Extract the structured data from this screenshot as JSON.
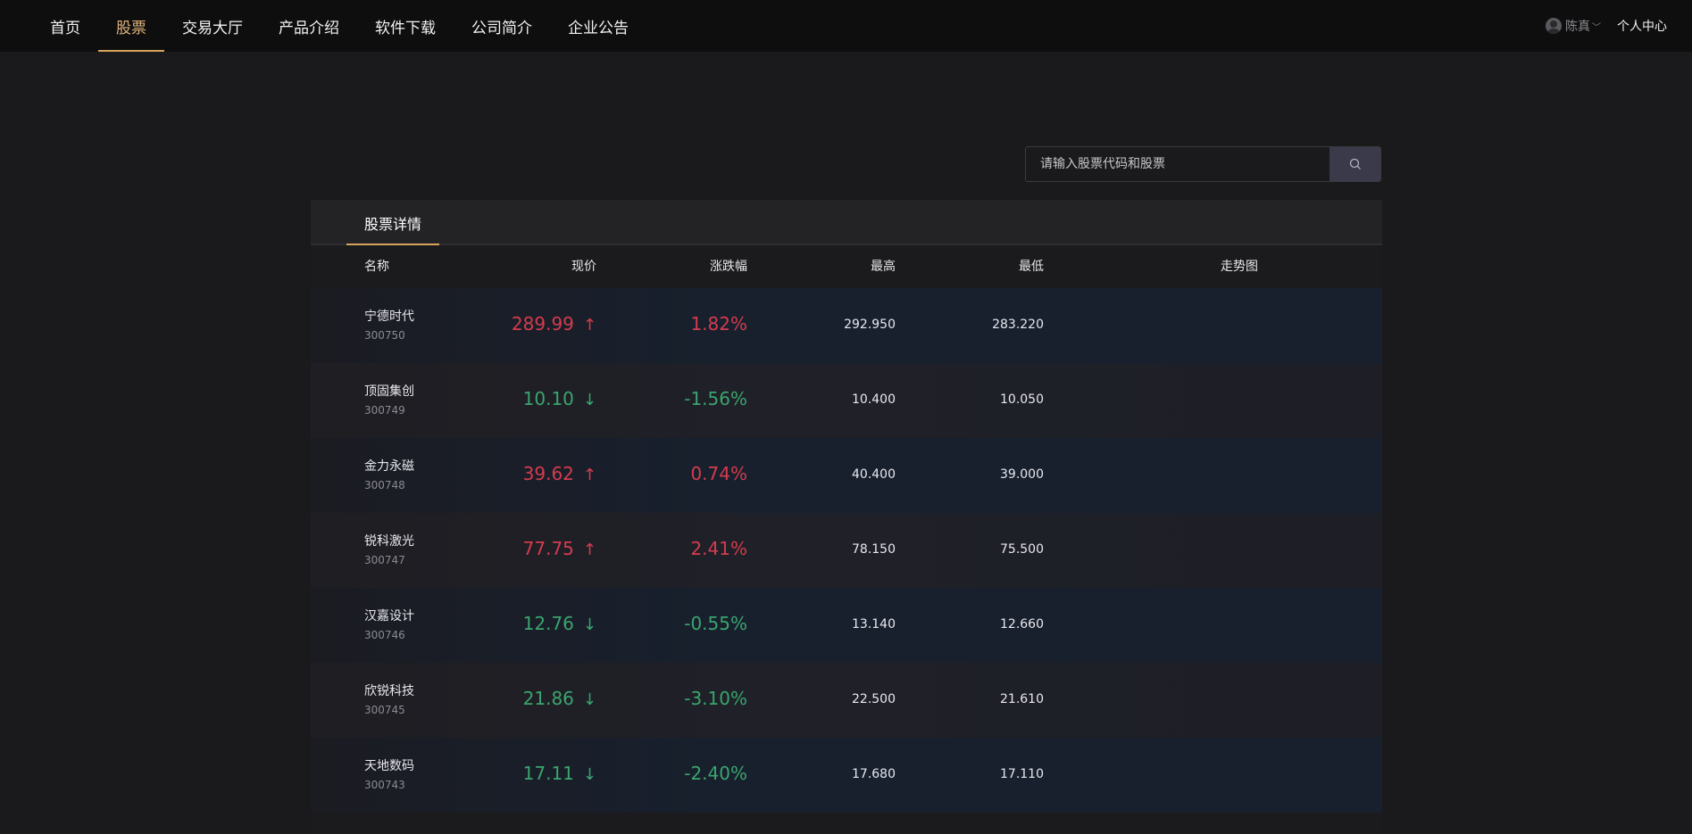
{
  "nav": {
    "items": [
      {
        "label": "首页"
      },
      {
        "label": "股票"
      },
      {
        "label": "交易大厅"
      },
      {
        "label": "产品介绍"
      },
      {
        "label": "软件下载"
      },
      {
        "label": "公司简介"
      },
      {
        "label": "企业公告"
      }
    ],
    "active_index": 1
  },
  "user": {
    "name": "陈真",
    "personal_center": "个人中心"
  },
  "search": {
    "placeholder": "请输入股票代码和股票"
  },
  "panel": {
    "tab": "股票详情",
    "columns": {
      "name": "名称",
      "price": "现价",
      "change": "涨跌幅",
      "high": "最高",
      "low": "最低",
      "trend": "走势图"
    },
    "rows": [
      {
        "name": "宁德时代",
        "code": "300750",
        "price": "289.99",
        "direction": "up",
        "arrow": "↑",
        "change": "1.82%",
        "high": "292.950",
        "low": "283.220"
      },
      {
        "name": "顶固集创",
        "code": "300749",
        "price": "10.10",
        "direction": "down",
        "arrow": "↓",
        "change": "-1.56%",
        "high": "10.400",
        "low": "10.050"
      },
      {
        "name": "金力永磁",
        "code": "300748",
        "price": "39.62",
        "direction": "up",
        "arrow": "↑",
        "change": "0.74%",
        "high": "40.400",
        "low": "39.000"
      },
      {
        "name": "锐科激光",
        "code": "300747",
        "price": "77.75",
        "direction": "up",
        "arrow": "↑",
        "change": "2.41%",
        "high": "78.150",
        "low": "75.500"
      },
      {
        "name": "汉嘉设计",
        "code": "300746",
        "price": "12.76",
        "direction": "down",
        "arrow": "↓",
        "change": "-0.55%",
        "high": "13.140",
        "low": "12.660"
      },
      {
        "name": "欣锐科技",
        "code": "300745",
        "price": "21.86",
        "direction": "down",
        "arrow": "↓",
        "change": "-3.10%",
        "high": "22.500",
        "low": "21.610"
      },
      {
        "name": "天地数码",
        "code": "300743",
        "price": "17.11",
        "direction": "down",
        "arrow": "↓",
        "change": "-2.40%",
        "high": "17.680",
        "low": "17.110"
      }
    ]
  },
  "colors": {
    "accent": "#d9a45a",
    "up": "#d43c4e",
    "down": "#3aa56e",
    "background": "#1a191b",
    "topbar": "#0e0e0f"
  }
}
